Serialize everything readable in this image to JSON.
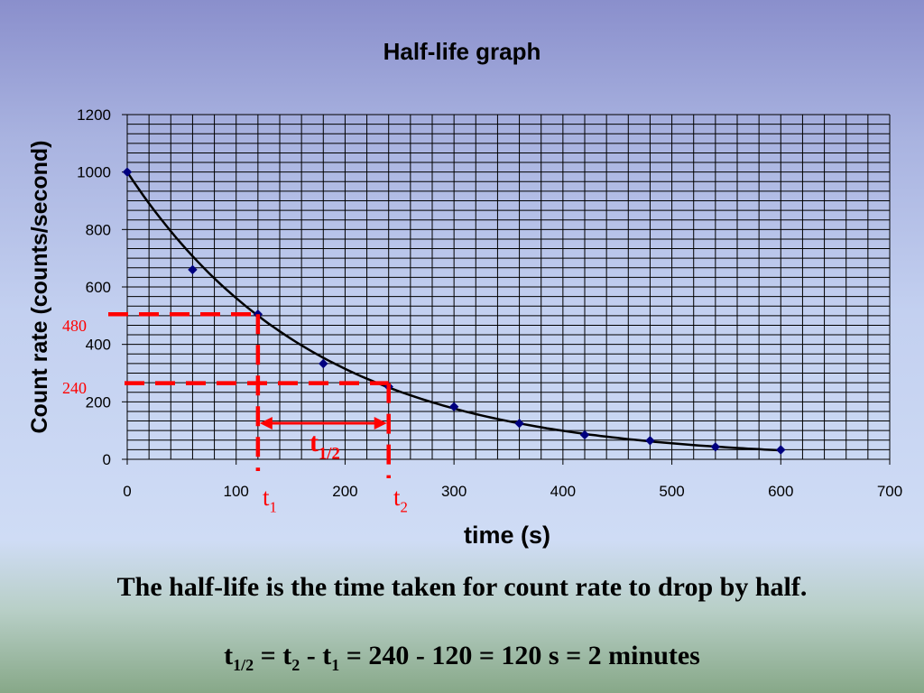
{
  "chart_data": {
    "type": "scatter",
    "title": "Half-life graph",
    "xlabel": "time (s)",
    "ylabel": "Count rate (counts/second)",
    "xlim": [
      0,
      700
    ],
    "ylim": [
      0,
      1200
    ],
    "x_ticks": [
      "0",
      "100",
      "200",
      "300",
      "400",
      "500",
      "600",
      "700"
    ],
    "y_ticks": [
      "0",
      "200",
      "400",
      "600",
      "800",
      "1000",
      "1200"
    ],
    "grid": true,
    "points": [
      {
        "x": 0,
        "y": 1000
      },
      {
        "x": 60,
        "y": 660
      },
      {
        "x": 120,
        "y": 505
      },
      {
        "x": 180,
        "y": 333
      },
      {
        "x": 240,
        "y": 253
      },
      {
        "x": 300,
        "y": 183
      },
      {
        "x": 360,
        "y": 125
      },
      {
        "x": 420,
        "y": 85
      },
      {
        "x": 480,
        "y": 65
      },
      {
        "x": 540,
        "y": 43
      },
      {
        "x": 600,
        "y": 33
      }
    ],
    "fit_curve": {
      "initial": 1000,
      "half_life": 120
    },
    "annotations": {
      "y_mark_1": {
        "label": "480",
        "value": 480
      },
      "y_mark_2": {
        "label": "240",
        "value": 240
      },
      "t1": {
        "label": "t",
        "sub": "1",
        "value": 120
      },
      "t2": {
        "label": "t",
        "sub": "2",
        "value": 240
      },
      "half": {
        "label": "t",
        "sub": "1/2"
      }
    },
    "colors": {
      "points": "#00007f",
      "curve": "#000000",
      "annotation": "#ff0000",
      "grid": "#000000"
    }
  },
  "captions": {
    "line1": "The half-life is the time taken for count rate to drop by half.",
    "line2": {
      "t": "t",
      "s_half": "1/2",
      "eq1": " = t",
      "s2": "2",
      "minus": " - t",
      "s1": "1",
      "rest": " = 240 - 120 = 120 s  = 2 minutes"
    }
  }
}
